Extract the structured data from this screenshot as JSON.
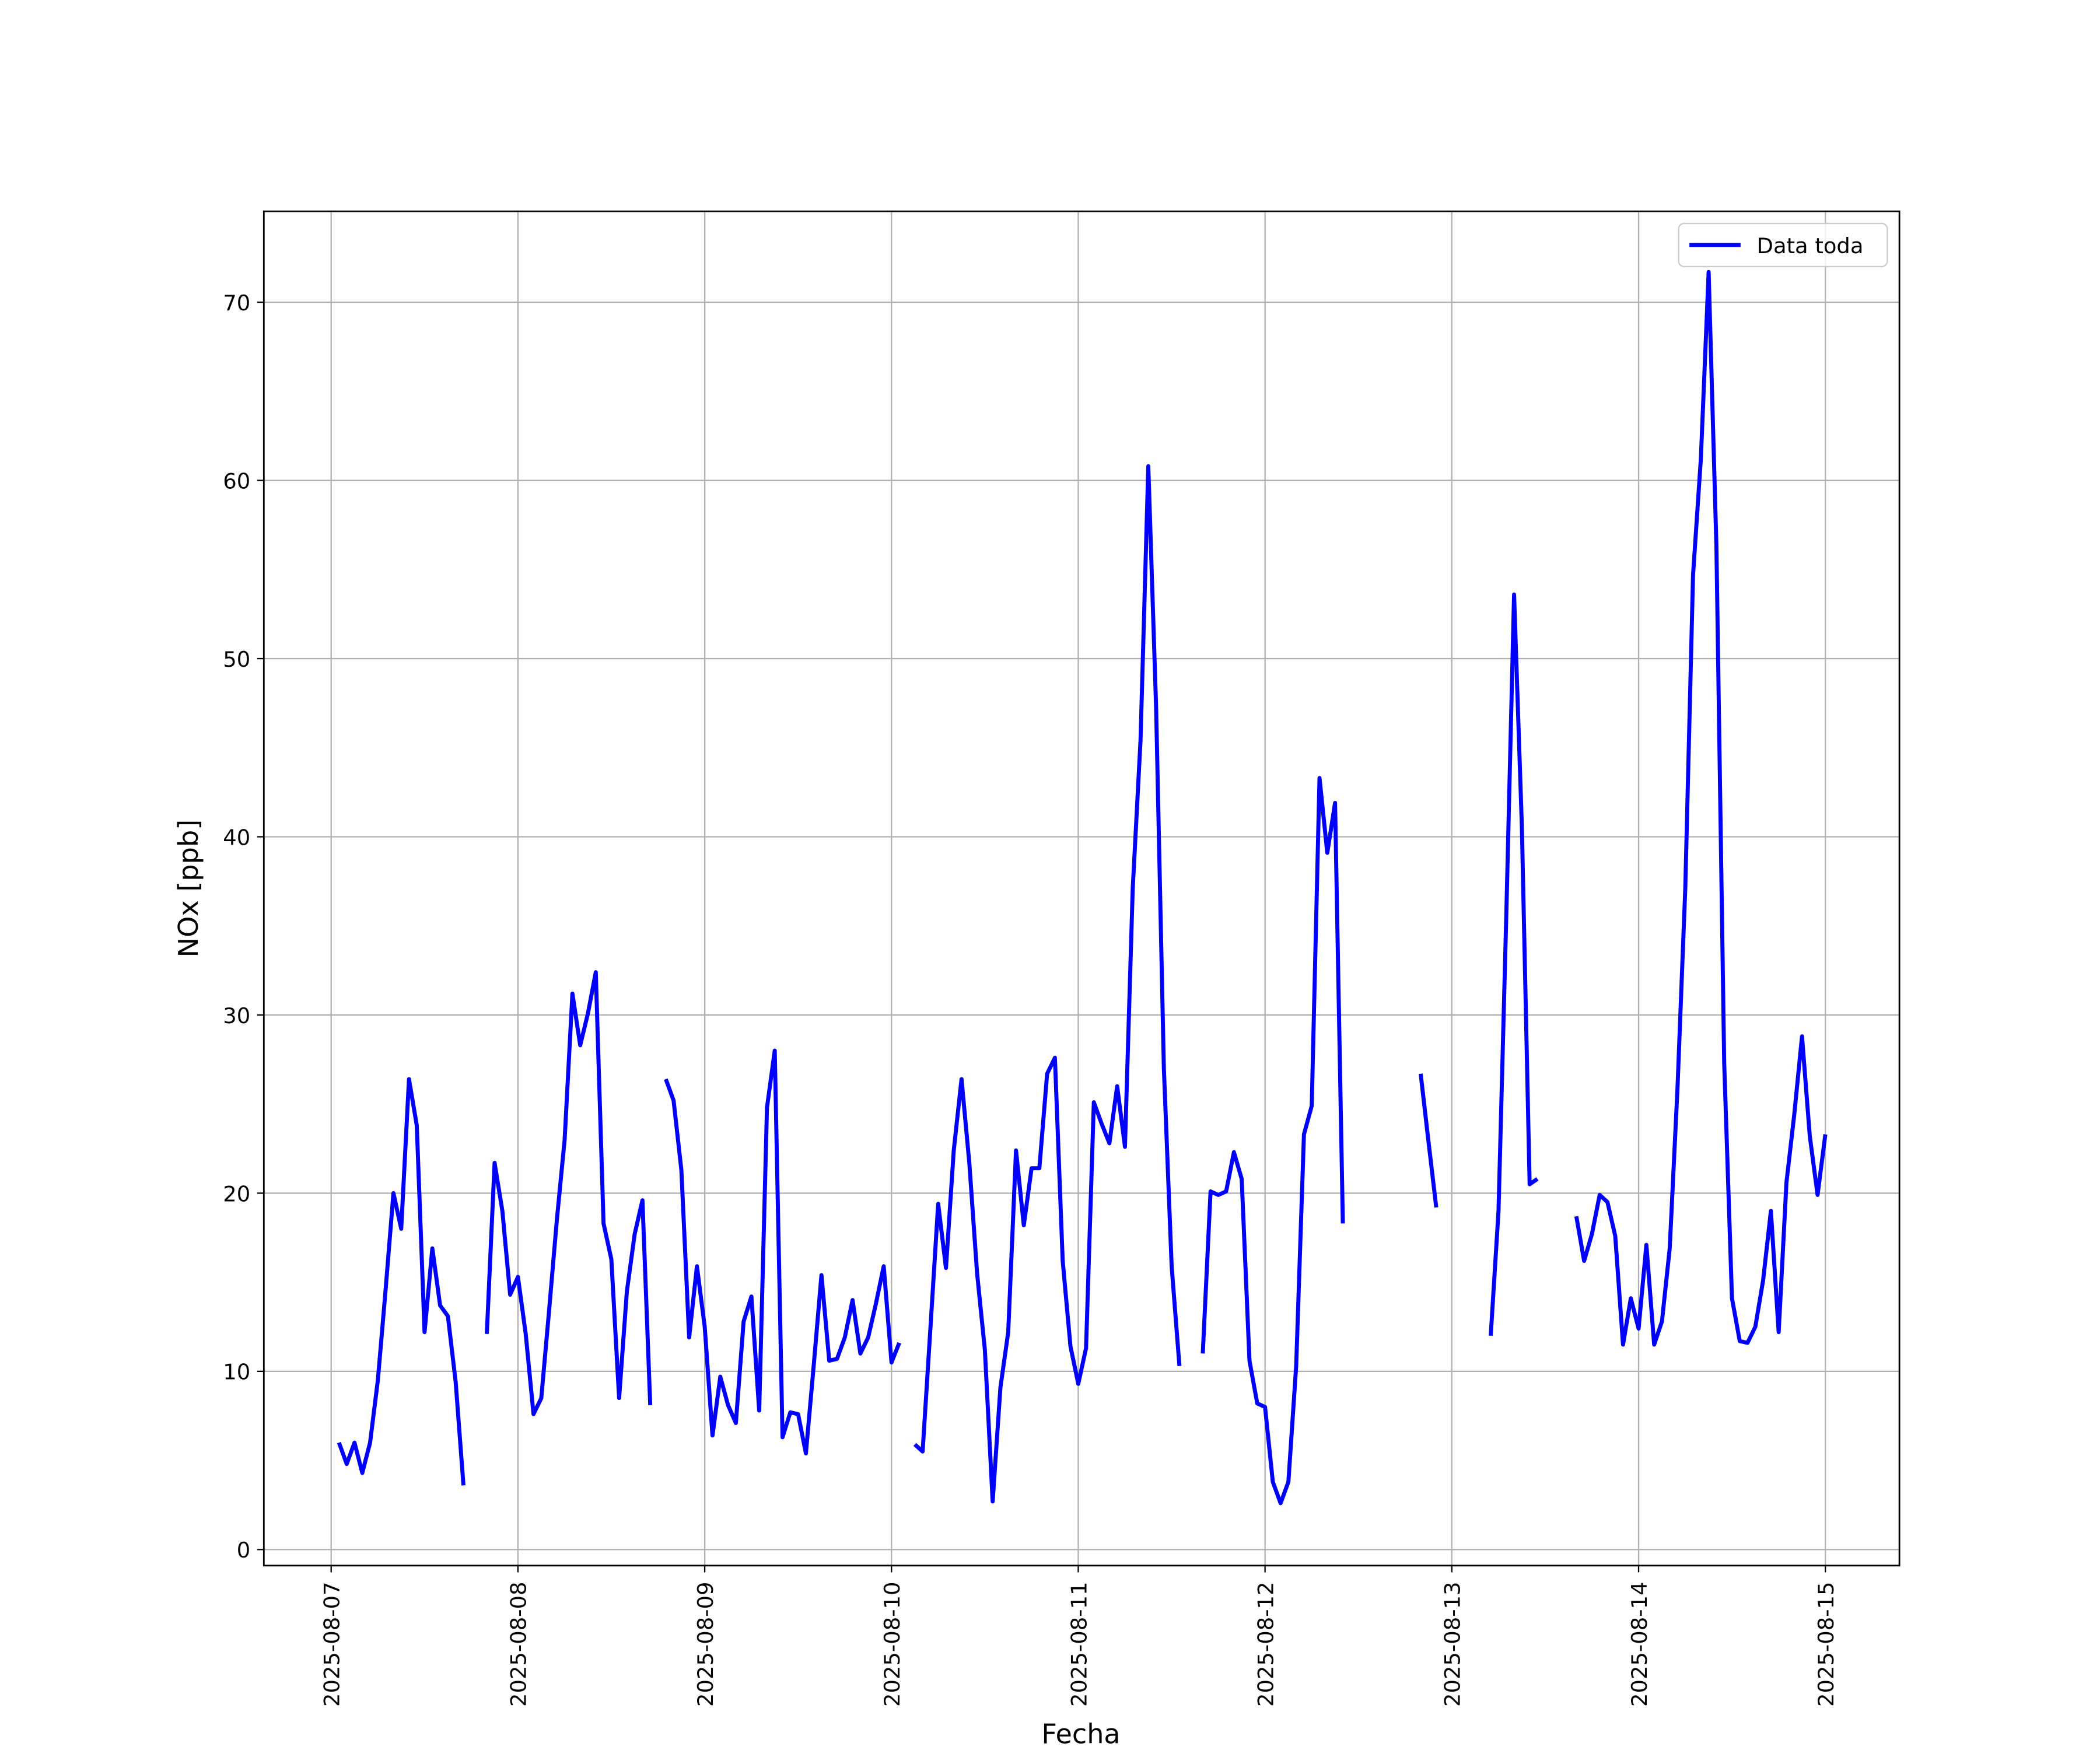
{
  "chart_data": {
    "type": "line",
    "xlabel": "Fecha",
    "ylabel": "NOx [ppb]",
    "x": [
      "2025-08-07T01:00",
      "2025-08-07T02:00",
      "2025-08-07T03:00",
      "2025-08-07T04:00",
      "2025-08-07T05:00",
      "2025-08-07T06:00",
      "2025-08-07T07:00",
      "2025-08-07T08:00",
      "2025-08-07T09:00",
      "2025-08-07T10:00",
      "2025-08-07T11:00",
      "2025-08-07T12:00",
      "2025-08-07T13:00",
      "2025-08-07T14:00",
      "2025-08-07T15:00",
      "2025-08-07T16:00",
      "2025-08-07T17:00",
      "2025-08-07T18:00",
      "2025-08-07T19:00",
      "2025-08-07T20:00",
      "2025-08-07T21:00",
      "2025-08-07T22:00",
      "2025-08-07T23:00",
      "2025-08-08T00:00",
      "2025-08-08T01:00",
      "2025-08-08T02:00",
      "2025-08-08T03:00",
      "2025-08-08T04:00",
      "2025-08-08T05:00",
      "2025-08-08T06:00",
      "2025-08-08T07:00",
      "2025-08-08T08:00",
      "2025-08-08T09:00",
      "2025-08-08T10:00",
      "2025-08-08T11:00",
      "2025-08-08T12:00",
      "2025-08-08T13:00",
      "2025-08-08T14:00",
      "2025-08-08T15:00",
      "2025-08-08T16:00",
      "2025-08-08T17:00",
      "2025-08-08T18:00",
      "2025-08-08T19:00",
      "2025-08-08T20:00",
      "2025-08-08T21:00",
      "2025-08-08T22:00",
      "2025-08-08T23:00",
      "2025-08-09T00:00",
      "2025-08-09T01:00",
      "2025-08-09T02:00",
      "2025-08-09T03:00",
      "2025-08-09T04:00",
      "2025-08-09T05:00",
      "2025-08-09T06:00",
      "2025-08-09T07:00",
      "2025-08-09T08:00",
      "2025-08-09T09:00",
      "2025-08-09T10:00",
      "2025-08-09T11:00",
      "2025-08-09T12:00",
      "2025-08-09T13:00",
      "2025-08-09T14:00",
      "2025-08-09T15:00",
      "2025-08-09T16:00",
      "2025-08-09T17:00",
      "2025-08-09T18:00",
      "2025-08-09T19:00",
      "2025-08-09T20:00",
      "2025-08-09T21:00",
      "2025-08-09T22:00",
      "2025-08-09T23:00",
      "2025-08-10T00:00",
      "2025-08-10T01:00",
      "2025-08-10T02:00",
      "2025-08-10T03:00",
      "2025-08-10T04:00",
      "2025-08-10T05:00",
      "2025-08-10T06:00",
      "2025-08-10T07:00",
      "2025-08-10T08:00",
      "2025-08-10T09:00",
      "2025-08-10T10:00",
      "2025-08-10T11:00",
      "2025-08-10T12:00",
      "2025-08-10T13:00",
      "2025-08-10T14:00",
      "2025-08-10T15:00",
      "2025-08-10T16:00",
      "2025-08-10T17:00",
      "2025-08-10T18:00",
      "2025-08-10T19:00",
      "2025-08-10T20:00",
      "2025-08-10T21:00",
      "2025-08-10T22:00",
      "2025-08-10T23:00",
      "2025-08-11T00:00",
      "2025-08-11T01:00",
      "2025-08-11T02:00",
      "2025-08-11T03:00",
      "2025-08-11T04:00",
      "2025-08-11T05:00",
      "2025-08-11T06:00",
      "2025-08-11T07:00",
      "2025-08-11T08:00",
      "2025-08-11T09:00",
      "2025-08-11T10:00",
      "2025-08-11T11:00",
      "2025-08-11T12:00",
      "2025-08-11T13:00",
      "2025-08-11T14:00",
      "2025-08-11T15:00",
      "2025-08-11T16:00",
      "2025-08-11T17:00",
      "2025-08-11T18:00",
      "2025-08-11T19:00",
      "2025-08-11T20:00",
      "2025-08-11T21:00",
      "2025-08-11T22:00",
      "2025-08-11T23:00",
      "2025-08-12T00:00",
      "2025-08-12T01:00",
      "2025-08-12T02:00",
      "2025-08-12T03:00",
      "2025-08-12T04:00",
      "2025-08-12T05:00",
      "2025-08-12T06:00",
      "2025-08-12T07:00",
      "2025-08-12T08:00",
      "2025-08-12T09:00",
      "2025-08-12T10:00",
      "2025-08-12T11:00",
      "2025-08-12T12:00",
      "2025-08-12T13:00",
      "2025-08-12T14:00",
      "2025-08-12T15:00",
      "2025-08-12T16:00",
      "2025-08-12T17:00",
      "2025-08-12T18:00",
      "2025-08-12T19:00",
      "2025-08-12T20:00",
      "2025-08-12T21:00",
      "2025-08-12T22:00",
      "2025-08-12T23:00",
      "2025-08-13T00:00",
      "2025-08-13T01:00",
      "2025-08-13T02:00",
      "2025-08-13T03:00",
      "2025-08-13T04:00",
      "2025-08-13T05:00",
      "2025-08-13T06:00",
      "2025-08-13T07:00",
      "2025-08-13T08:00",
      "2025-08-13T09:00",
      "2025-08-13T10:00",
      "2025-08-13T11:00",
      "2025-08-13T12:00",
      "2025-08-13T13:00",
      "2025-08-13T14:00",
      "2025-08-13T15:00",
      "2025-08-13T16:00",
      "2025-08-13T17:00",
      "2025-08-13T18:00",
      "2025-08-13T19:00",
      "2025-08-13T20:00",
      "2025-08-13T21:00",
      "2025-08-13T22:00",
      "2025-08-13T23:00",
      "2025-08-14T00:00",
      "2025-08-14T01:00",
      "2025-08-14T02:00",
      "2025-08-14T03:00",
      "2025-08-14T04:00",
      "2025-08-14T05:00",
      "2025-08-14T06:00",
      "2025-08-14T07:00",
      "2025-08-14T08:00",
      "2025-08-14T09:00",
      "2025-08-14T10:00",
      "2025-08-14T11:00",
      "2025-08-14T12:00",
      "2025-08-14T13:00",
      "2025-08-14T14:00",
      "2025-08-14T15:00",
      "2025-08-14T16:00",
      "2025-08-14T17:00",
      "2025-08-14T18:00",
      "2025-08-14T19:00",
      "2025-08-14T20:00",
      "2025-08-14T21:00",
      "2025-08-14T22:00",
      "2025-08-14T23:00",
      "2025-08-15T00:00"
    ],
    "series": [
      {
        "name": "Data toda",
        "color": "#0000ff",
        "values": [
          6.0,
          4.8,
          6.0,
          4.3,
          6.0,
          9.5,
          14.6,
          20.0,
          18.0,
          26.4,
          23.8,
          12.2,
          16.9,
          13.7,
          13.1,
          9.4,
          3.6,
          null,
          null,
          12.1,
          21.7,
          19.0,
          14.3,
          15.3,
          12.1,
          7.6,
          8.5,
          13.4,
          18.5,
          23.0,
          31.2,
          28.3,
          30.1,
          32.4,
          18.3,
          16.3,
          8.5,
          14.5,
          17.7,
          19.6,
          8.1,
          null,
          26.4,
          25.2,
          21.3,
          11.9,
          15.9,
          12.5,
          6.4,
          9.7,
          8.1,
          7.1,
          12.8,
          14.2,
          7.8,
          24.8,
          28.0,
          6.3,
          7.7,
          7.6,
          5.4,
          10.3,
          15.4,
          10.6,
          10.7,
          11.9,
          14.0,
          11.0,
          11.9,
          13.8,
          15.9,
          10.5,
          11.6,
          null,
          5.9,
          5.5,
          12.4,
          19.4,
          15.8,
          22.4,
          26.4,
          21.7,
          15.5,
          11.2,
          2.7,
          9.1,
          12.2,
          22.4,
          18.2,
          21.4,
          21.4,
          26.7,
          27.6,
          16.2,
          11.4,
          9.3,
          11.3,
          25.1,
          23.9,
          22.8,
          26.0,
          22.6,
          37.1,
          45.4,
          60.8,
          47.3,
          27.0,
          15.9,
          10.3,
          null,
          null,
          11.0,
          20.1,
          19.9,
          20.1,
          22.3,
          20.8,
          10.6,
          8.2,
          8.0,
          3.8,
          2.6,
          3.8,
          10.3,
          23.3,
          24.9,
          43.3,
          39.1,
          41.9,
          18.3,
          null,
          null,
          null,
          null,
          null,
          null,
          null,
          null,
          null,
          26.7,
          22.9,
          19.2,
          null,
          null,
          null,
          null,
          null,
          null,
          12.0,
          19.0,
          35.6,
          53.6,
          40.6,
          20.5,
          20.8,
          null,
          null,
          null,
          null,
          18.7,
          16.2,
          17.7,
          19.9,
          19.5,
          17.6,
          11.5,
          14.1,
          12.4,
          17.1,
          11.5,
          12.8,
          16.9,
          25.9,
          37.1,
          54.7,
          61.2,
          71.7,
          56.3,
          27.3,
          14.1,
          11.7,
          11.6,
          12.5,
          15.1,
          19.0,
          12.2,
          20.6,
          24.4,
          28.8,
          23.2,
          19.9,
          23.3
        ]
      }
    ],
    "xlim": [
      "2025-08-06T15:21",
      "2025-08-15T09:31"
    ],
    "xticks": [
      "2025-08-07",
      "2025-08-08",
      "2025-08-09",
      "2025-08-10",
      "2025-08-11",
      "2025-08-12",
      "2025-08-13",
      "2025-08-14",
      "2025-08-15"
    ],
    "ylim": [
      -0.9,
      75.1
    ],
    "yticks": [
      0,
      10,
      20,
      30,
      40,
      50,
      60,
      70
    ],
    "grid": true,
    "legend": "upper right"
  }
}
